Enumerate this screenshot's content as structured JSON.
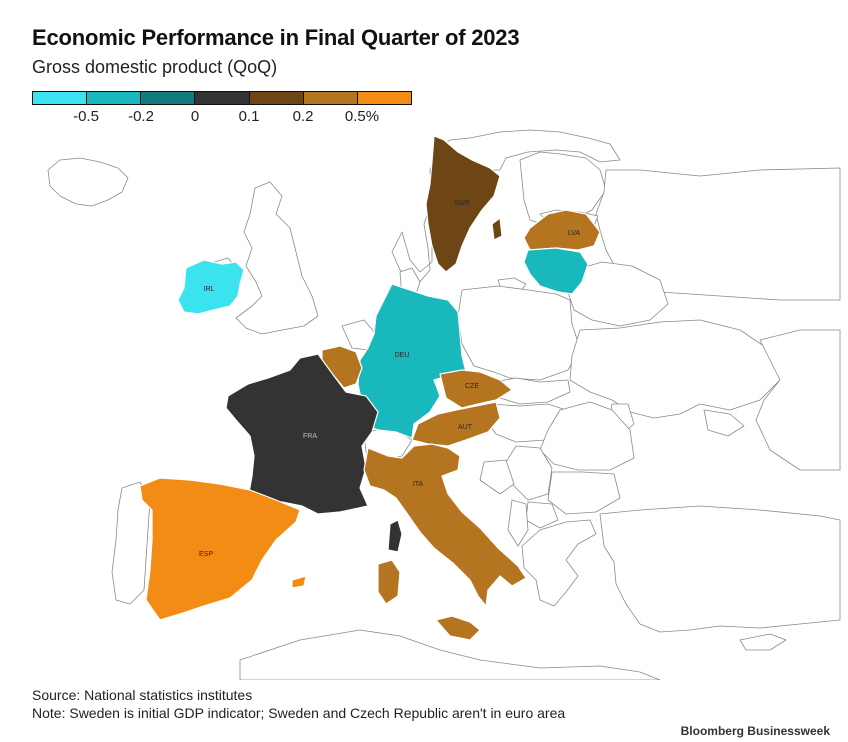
{
  "title": "Economic Performance in Final Quarter of 2023",
  "subtitle": "Gross domestic product (QoQ)",
  "legend": {
    "colors": [
      "#3be3ef",
      "#18b8bd",
      "#137a80",
      "#333333",
      "#6e4515",
      "#b5741f",
      "#f28c14"
    ],
    "ticks": [
      "-0.5",
      "-0.2",
      "0",
      "0.1",
      "0.2",
      "0.5%"
    ]
  },
  "countries": [
    {
      "code": "SWE",
      "label": "SWE",
      "color": "#6e4515"
    },
    {
      "code": "LVA",
      "label": "LVA",
      "color": "#b5741f"
    },
    {
      "code": "LTU",
      "label": "",
      "color": "#18b8bd"
    },
    {
      "code": "IRL",
      "label": "IRL",
      "color": "#3be3ef"
    },
    {
      "code": "DEU",
      "label": "DEU",
      "color": "#18b8bd"
    },
    {
      "code": "BEL",
      "label": "",
      "color": "#b5741f"
    },
    {
      "code": "CZE",
      "label": "CZE",
      "color": "#b5741f"
    },
    {
      "code": "AUT",
      "label": "AUT",
      "color": "#b5741f"
    },
    {
      "code": "FRA",
      "label": "FRA",
      "color": "#333333"
    },
    {
      "code": "ITA",
      "label": "ITA",
      "color": "#b5741f"
    },
    {
      "code": "ESP",
      "label": "ESP",
      "color": "#f28c14"
    }
  ],
  "source": "Source: National statistics institutes",
  "note": "Note: Sweden is initial GDP indicator; Sweden and Czech Republic aren't in euro area",
  "brand": "Bloomberg Businessweek"
}
